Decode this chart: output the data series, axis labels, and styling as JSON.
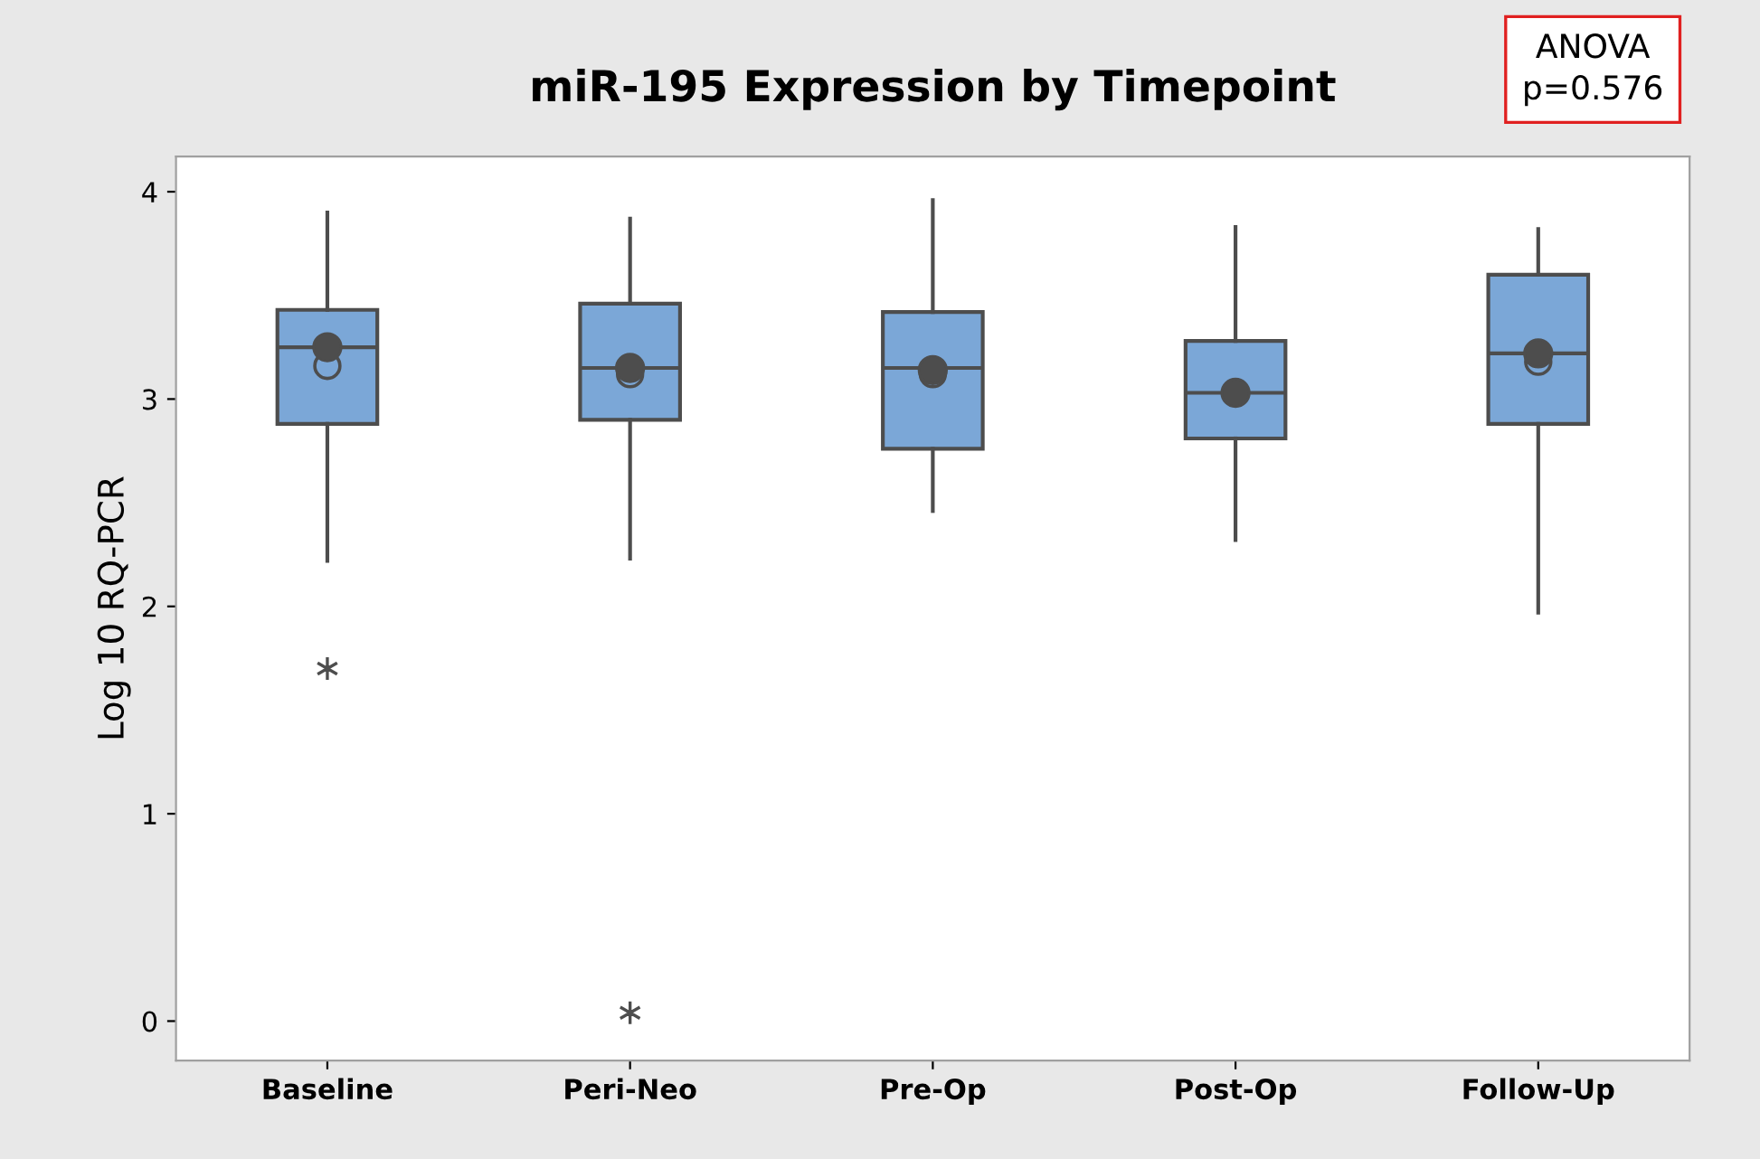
{
  "chart_data": {
    "type": "box",
    "title": "miR-195 Expression by Timepoint",
    "ylabel": "Log 10 RQ-PCR",
    "annotations": [
      "ANOVA\np=0.576"
    ],
    "categories": [
      "Baseline",
      "Peri-Neo",
      "Pre-Op",
      "Post-Op",
      "Follow-Up"
    ],
    "ylim": [
      -0.19,
      4.17
    ],
    "yticks": [
      0,
      1,
      2,
      3,
      4
    ],
    "grid": false,
    "legend": false,
    "series": [
      {
        "type": "box",
        "color": "#7ba7d7",
        "boxes": [
          {
            "low": 2.22,
            "q1": 2.88,
            "median": 3.25,
            "q3": 3.43,
            "high": 3.9,
            "mean": 3.16,
            "outliers": [
              1.7
            ]
          },
          {
            "low": 2.23,
            "q1": 2.9,
            "median": 3.15,
            "q3": 3.46,
            "high": 3.87,
            "mean": 3.12,
            "outliers": [
              0.04
            ]
          },
          {
            "low": 2.46,
            "q1": 2.76,
            "median": 3.15,
            "q3": 3.42,
            "high": 3.96,
            "mean": 3.12
          },
          {
            "low": 2.32,
            "q1": 2.81,
            "median": 3.03,
            "q3": 3.28,
            "high": 3.83
          },
          {
            "low": 1.97,
            "q1": 2.88,
            "median": 3.22,
            "q3": 3.6,
            "high": 3.82,
            "mean": 3.18
          }
        ]
      },
      {
        "type": "scatter",
        "color": "#4d4d4d",
        "marker": "circle",
        "x": [
          "Baseline",
          "Peri-Neo",
          "Pre-Op",
          "Post-Op",
          "Follow-Up"
        ],
        "values": [
          3.25,
          3.15,
          3.14,
          3.03,
          3.22
        ]
      }
    ]
  }
}
